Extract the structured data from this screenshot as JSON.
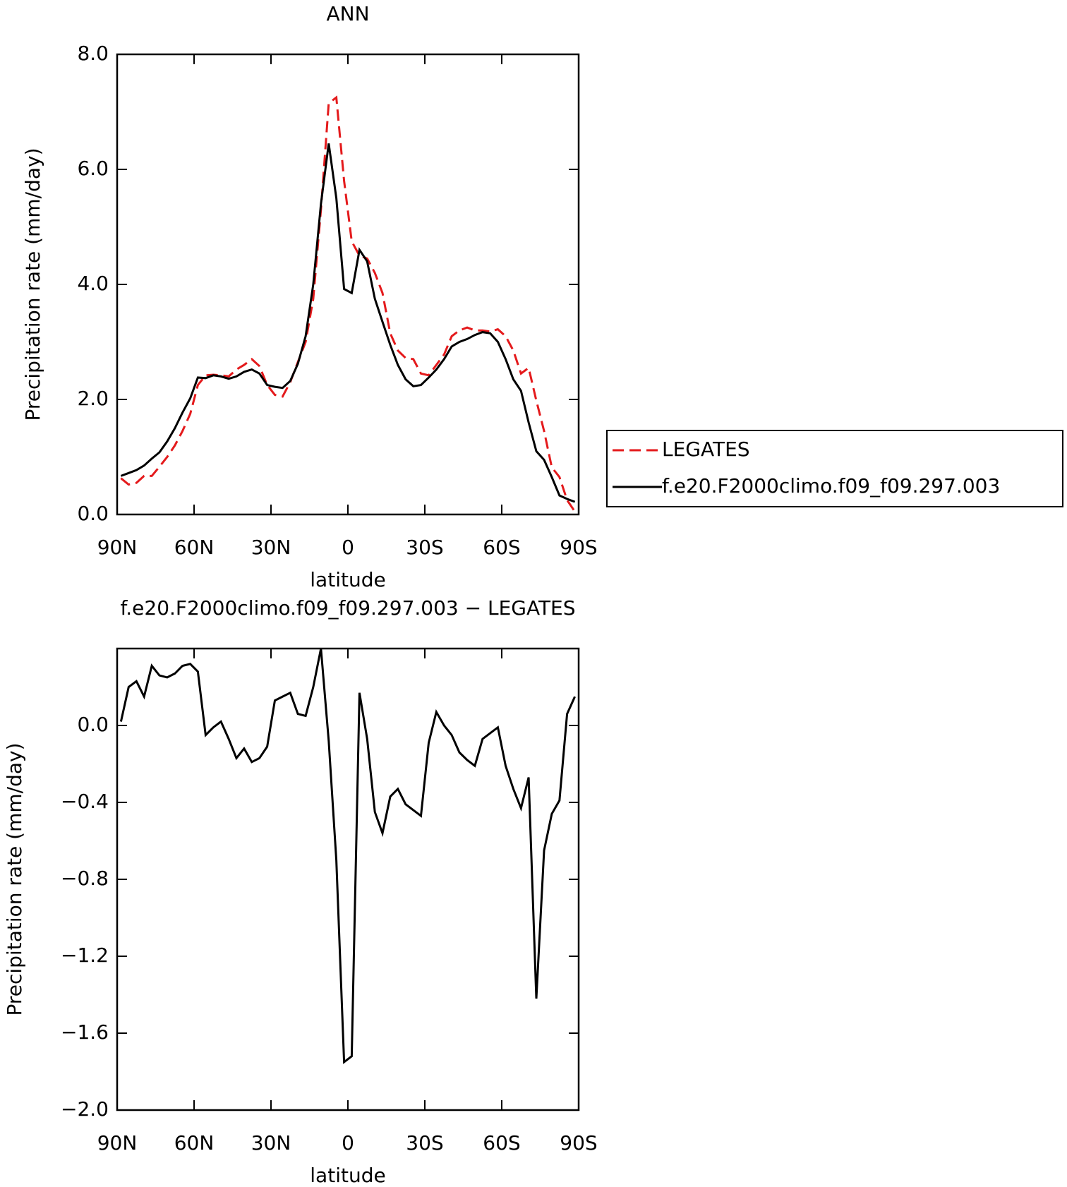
{
  "chart_data": [
    {
      "type": "line",
      "title": "ANN",
      "x_label": "latitude",
      "y_label": "Precipitation rate (mm/day)",
      "x": [
        88.5,
        85.5,
        82.5,
        79.5,
        76.5,
        73.5,
        70.5,
        67.5,
        64.5,
        61.5,
        58.5,
        55.5,
        52.5,
        49.5,
        46.5,
        43.5,
        40.5,
        37.5,
        34.5,
        31.5,
        28.5,
        25.5,
        22.5,
        19.5,
        16.5,
        13.5,
        10.5,
        7.5,
        4.5,
        1.5,
        -1.5,
        -4.5,
        -7.5,
        -10.5,
        -13.5,
        -16.5,
        -19.5,
        -22.5,
        -25.5,
        -28.5,
        -31.5,
        -34.5,
        -37.5,
        -40.5,
        -43.5,
        -46.5,
        -49.5,
        -52.5,
        -55.5,
        -58.5,
        -61.5,
        -64.5,
        -67.5,
        -70.5,
        -73.5,
        -76.5,
        -79.5,
        -82.5,
        -85.5,
        -88.5
      ],
      "series": [
        {
          "name": "LEGATES",
          "color": "#e41a1c",
          "line_style": "dashed",
          "values": [
            0.63,
            0.52,
            0.55,
            0.67,
            0.67,
            0.83,
            1.0,
            1.2,
            1.45,
            1.75,
            2.25,
            2.42,
            2.43,
            2.42,
            2.4,
            2.52,
            2.6,
            2.7,
            2.58,
            2.25,
            2.08,
            2.05,
            2.3,
            2.65,
            3.0,
            3.75,
            5.3,
            7.15,
            7.25,
            5.8,
            4.75,
            4.5,
            4.45,
            4.2,
            3.85,
            3.15,
            2.85,
            2.72,
            2.7,
            2.45,
            2.42,
            2.6,
            2.78,
            3.1,
            3.2,
            3.25,
            3.2,
            3.2,
            3.18,
            3.22,
            3.1,
            2.85,
            2.45,
            2.55,
            1.98,
            1.45,
            0.82,
            0.65,
            0.25,
            0.05
          ]
        },
        {
          "name": "f.e20.F2000climo.f09_f09.297.003",
          "color": "#000000",
          "line_style": "solid",
          "values": [
            0.67,
            0.72,
            0.77,
            0.85,
            0.97,
            1.08,
            1.27,
            1.5,
            1.77,
            2.02,
            2.38,
            2.37,
            2.42,
            2.4,
            2.36,
            2.4,
            2.48,
            2.52,
            2.45,
            2.25,
            2.22,
            2.2,
            2.32,
            2.62,
            3.1,
            4.0,
            5.4,
            6.45,
            5.5,
            3.92,
            3.85,
            4.6,
            4.4,
            3.75,
            3.35,
            2.95,
            2.6,
            2.35,
            2.23,
            2.25,
            2.38,
            2.52,
            2.7,
            2.92,
            3.0,
            3.05,
            3.12,
            3.17,
            3.15,
            3.0,
            2.7,
            2.35,
            2.15,
            1.6,
            1.1,
            0.95,
            0.65,
            0.33,
            0.27,
            0.22
          ]
        }
      ],
      "xlim": [
        90,
        -90
      ],
      "xticks": [
        {
          "value": 90,
          "label": "90N"
        },
        {
          "value": 60,
          "label": "60N"
        },
        {
          "value": 30,
          "label": "30N"
        },
        0,
        {
          "value": -30,
          "label": "30S"
        },
        {
          "value": -60,
          "label": "60S"
        },
        {
          "value": -90,
          "label": "90S"
        }
      ],
      "ylim": [
        0,
        8
      ],
      "yticks": [
        {
          "value": 0,
          "label": "0.0"
        },
        {
          "value": 2,
          "label": "2.0"
        },
        {
          "value": 4,
          "label": "4.0"
        },
        {
          "value": 6,
          "label": "6.0"
        },
        {
          "value": 8,
          "label": "8.0"
        }
      ],
      "grid": false,
      "legend": "outside right"
    },
    {
      "type": "line",
      "title": "f.e20.F2000climo.f09_f09.297.003 − LEGATES",
      "x_label": "latitude",
      "y_label": "Precipitation rate (mm/day)",
      "x": [
        88.5,
        85.5,
        82.5,
        79.5,
        76.5,
        73.5,
        70.5,
        67.5,
        64.5,
        61.5,
        58.5,
        55.5,
        52.5,
        49.5,
        46.5,
        43.5,
        40.5,
        37.5,
        34.5,
        31.5,
        28.5,
        25.5,
        22.5,
        19.5,
        16.5,
        13.5,
        10.5,
        7.5,
        4.5,
        1.5,
        -1.5,
        -4.5,
        -7.5,
        -10.5,
        -13.5,
        -16.5,
        -19.5,
        -22.5,
        -25.5,
        -28.5,
        -31.5,
        -34.5,
        -37.5,
        -40.5,
        -43.5,
        -46.5,
        -49.5,
        -52.5,
        -55.5,
        -58.5,
        -61.5,
        -64.5,
        -67.5,
        -70.5,
        -73.5,
        -76.5,
        -79.5,
        -82.5,
        -85.5,
        -88.5
      ],
      "color": "#000000",
      "values": [
        0.02,
        0.2,
        0.23,
        0.15,
        0.31,
        0.26,
        0.25,
        0.27,
        0.31,
        0.32,
        0.28,
        -0.05,
        -0.01,
        0.02,
        -0.07,
        -0.17,
        -0.12,
        -0.19,
        -0.17,
        -0.11,
        0.13,
        0.15,
        0.17,
        0.06,
        0.05,
        0.2,
        0.4,
        -0.08,
        -0.7,
        -1.75,
        -1.72,
        0.17,
        -0.07,
        -0.45,
        -0.56,
        -0.37,
        -0.33,
        -0.41,
        -0.44,
        -0.47,
        -0.09,
        0.07,
        0.0,
        -0.05,
        -0.14,
        -0.18,
        -0.21,
        -0.07,
        -0.04,
        -0.01,
        -0.21,
        -0.33,
        -0.43,
        -0.27,
        -1.42,
        -0.65,
        -0.46,
        -0.39,
        0.06,
        0.15
      ],
      "xlim": [
        90,
        -90
      ],
      "xticks": [
        {
          "value": 90,
          "label": "90N"
        },
        {
          "value": 60,
          "label": "60N"
        },
        {
          "value": 30,
          "label": "30N"
        },
        0,
        {
          "value": -30,
          "label": "30S"
        },
        {
          "value": -60,
          "label": "60S"
        },
        {
          "value": -90,
          "label": "90S"
        }
      ],
      "ylim": [
        -2.0,
        0.4
      ],
      "yticks": [
        {
          "value": -2.0,
          "label": "−2.0"
        },
        {
          "value": -1.6,
          "label": "−1.6"
        },
        {
          "value": -1.2,
          "label": "−1.2"
        },
        {
          "value": -0.8,
          "label": "−0.8"
        },
        {
          "value": -0.4,
          "label": "−0.4"
        },
        {
          "value": 0,
          "label": "0.0"
        }
      ],
      "grid": false
    }
  ]
}
